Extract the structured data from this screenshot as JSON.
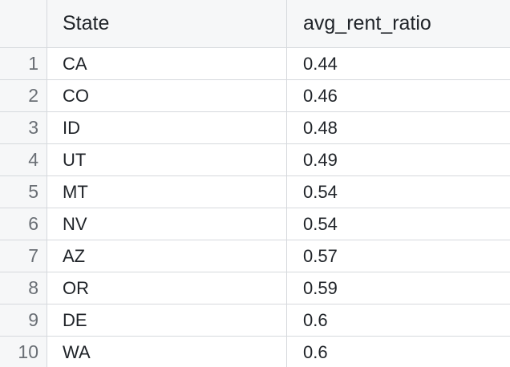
{
  "table": {
    "columns": [
      "State",
      "avg_rent_ratio"
    ],
    "rows": [
      {
        "index": "1",
        "state": "CA",
        "ratio": "0.44"
      },
      {
        "index": "2",
        "state": "CO",
        "ratio": "0.46"
      },
      {
        "index": "3",
        "state": "ID",
        "ratio": "0.48"
      },
      {
        "index": "4",
        "state": "UT",
        "ratio": "0.49"
      },
      {
        "index": "5",
        "state": "MT",
        "ratio": "0.54"
      },
      {
        "index": "6",
        "state": "NV",
        "ratio": "0.54"
      },
      {
        "index": "7",
        "state": "AZ",
        "ratio": "0.57"
      },
      {
        "index": "8",
        "state": "OR",
        "ratio": "0.59"
      },
      {
        "index": "9",
        "state": "DE",
        "ratio": "0.6"
      },
      {
        "index": "10",
        "state": "WA",
        "ratio": "0.6"
      }
    ]
  }
}
